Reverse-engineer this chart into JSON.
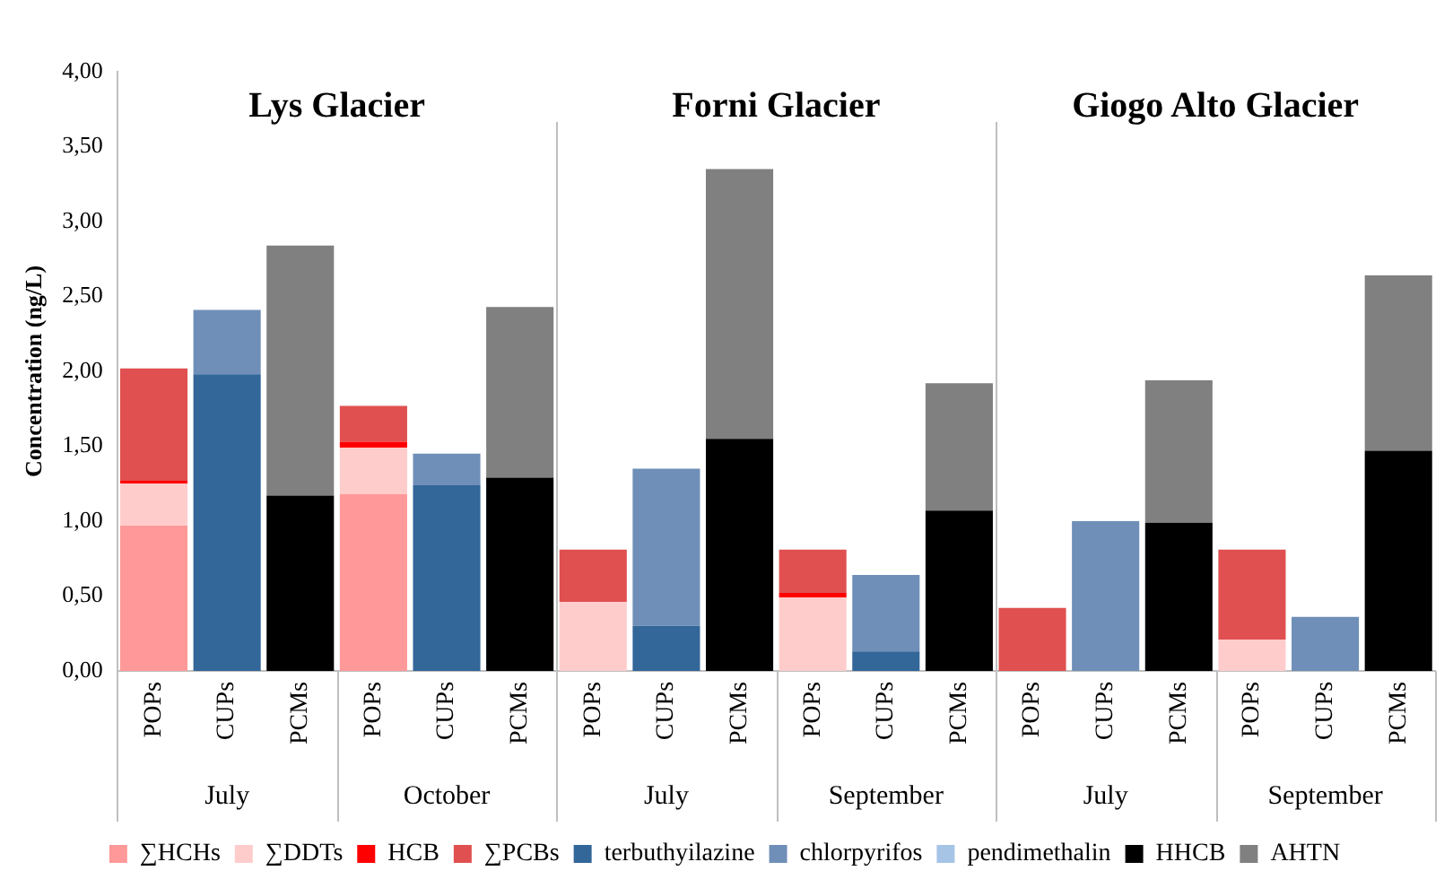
{
  "chart_data": {
    "type": "bar",
    "stacked": true,
    "ylabel": "Concentration (ng/L)",
    "categories": [
      "POPs",
      "CUPs",
      "PCMs",
      "POPs",
      "CUPs",
      "PCMs",
      "POPs",
      "CUPs",
      "PCMs",
      "POPs",
      "CUPs",
      "PCMs",
      "POPs",
      "CUPs",
      "PCMs",
      "POPs",
      "CUPs",
      "PCMs"
    ],
    "annotations": [
      "Lys Glacier",
      "Forni Glacier",
      "Giogo Alto Glacier",
      "July",
      "October",
      "July",
      "September",
      "July",
      "September"
    ],
    "ylim": [
      0,
      4
    ],
    "yticks": [
      {
        "value": 0,
        "label": "0,00"
      },
      {
        "value": 0.5,
        "label": "0,50"
      },
      {
        "value": 1,
        "label": "1,00"
      },
      {
        "value": 1.5,
        "label": "1,50"
      },
      {
        "value": 2,
        "label": "2,00"
      },
      {
        "value": 2.5,
        "label": "2,50"
      },
      {
        "value": 3,
        "label": "3,00"
      },
      {
        "value": 3.5,
        "label": "3,50"
      },
      {
        "value": 4,
        "label": "4,00"
      }
    ],
    "grid": false,
    "legend": "bottom",
    "series": [
      {
        "name": "∑HCHs",
        "color": "#ff9999",
        "values": [
          0.97,
          null,
          null,
          1.18,
          null,
          null,
          null,
          null,
          null,
          null,
          null,
          null,
          null,
          null,
          null,
          null,
          null,
          null
        ]
      },
      {
        "name": "∑DDTs",
        "color": "#ffcccc",
        "values": [
          0.28,
          null,
          null,
          0.31,
          null,
          null,
          0.46,
          null,
          null,
          0.49,
          null,
          null,
          null,
          null,
          null,
          0.21,
          null,
          null
        ]
      },
      {
        "name": "HCB",
        "color": "#ff0000",
        "values": [
          0.02,
          null,
          null,
          0.04,
          null,
          null,
          null,
          null,
          null,
          0.03,
          null,
          null,
          null,
          null,
          null,
          null,
          null,
          null
        ]
      },
      {
        "name": "∑PCBs",
        "color": "#e05050",
        "values": [
          0.75,
          null,
          null,
          0.24,
          null,
          null,
          0.35,
          null,
          null,
          0.29,
          null,
          null,
          0.42,
          null,
          null,
          0.6,
          null,
          null
        ]
      },
      {
        "name": "terbuthyilazine",
        "color": "#336699",
        "values": [
          null,
          1.98,
          null,
          null,
          1.24,
          null,
          null,
          0.3,
          null,
          null,
          0.13,
          null,
          null,
          null,
          null,
          null,
          null,
          null
        ]
      },
      {
        "name": "chlorpyrifos",
        "color": "#6f8fb8",
        "values": [
          null,
          0.43,
          null,
          null,
          0.21,
          null,
          null,
          1.05,
          null,
          null,
          0.51,
          null,
          null,
          1.0,
          null,
          null,
          0.36,
          null
        ]
      },
      {
        "name": "pendimethalin",
        "color": "#a6c4e6",
        "values": [
          null,
          null,
          null,
          null,
          null,
          null,
          null,
          null,
          null,
          null,
          null,
          null,
          null,
          null,
          null,
          null,
          null,
          null
        ]
      },
      {
        "name": "HHCB",
        "color": "#000000",
        "values": [
          null,
          null,
          1.17,
          null,
          null,
          1.29,
          null,
          null,
          1.55,
          null,
          null,
          1.07,
          null,
          null,
          0.99,
          null,
          null,
          1.47
        ]
      },
      {
        "name": "AHTN",
        "color": "#808080",
        "values": [
          null,
          null,
          1.67,
          null,
          null,
          1.14,
          null,
          null,
          1.8,
          null,
          null,
          0.85,
          null,
          null,
          0.95,
          null,
          null,
          1.17
        ]
      }
    ]
  }
}
